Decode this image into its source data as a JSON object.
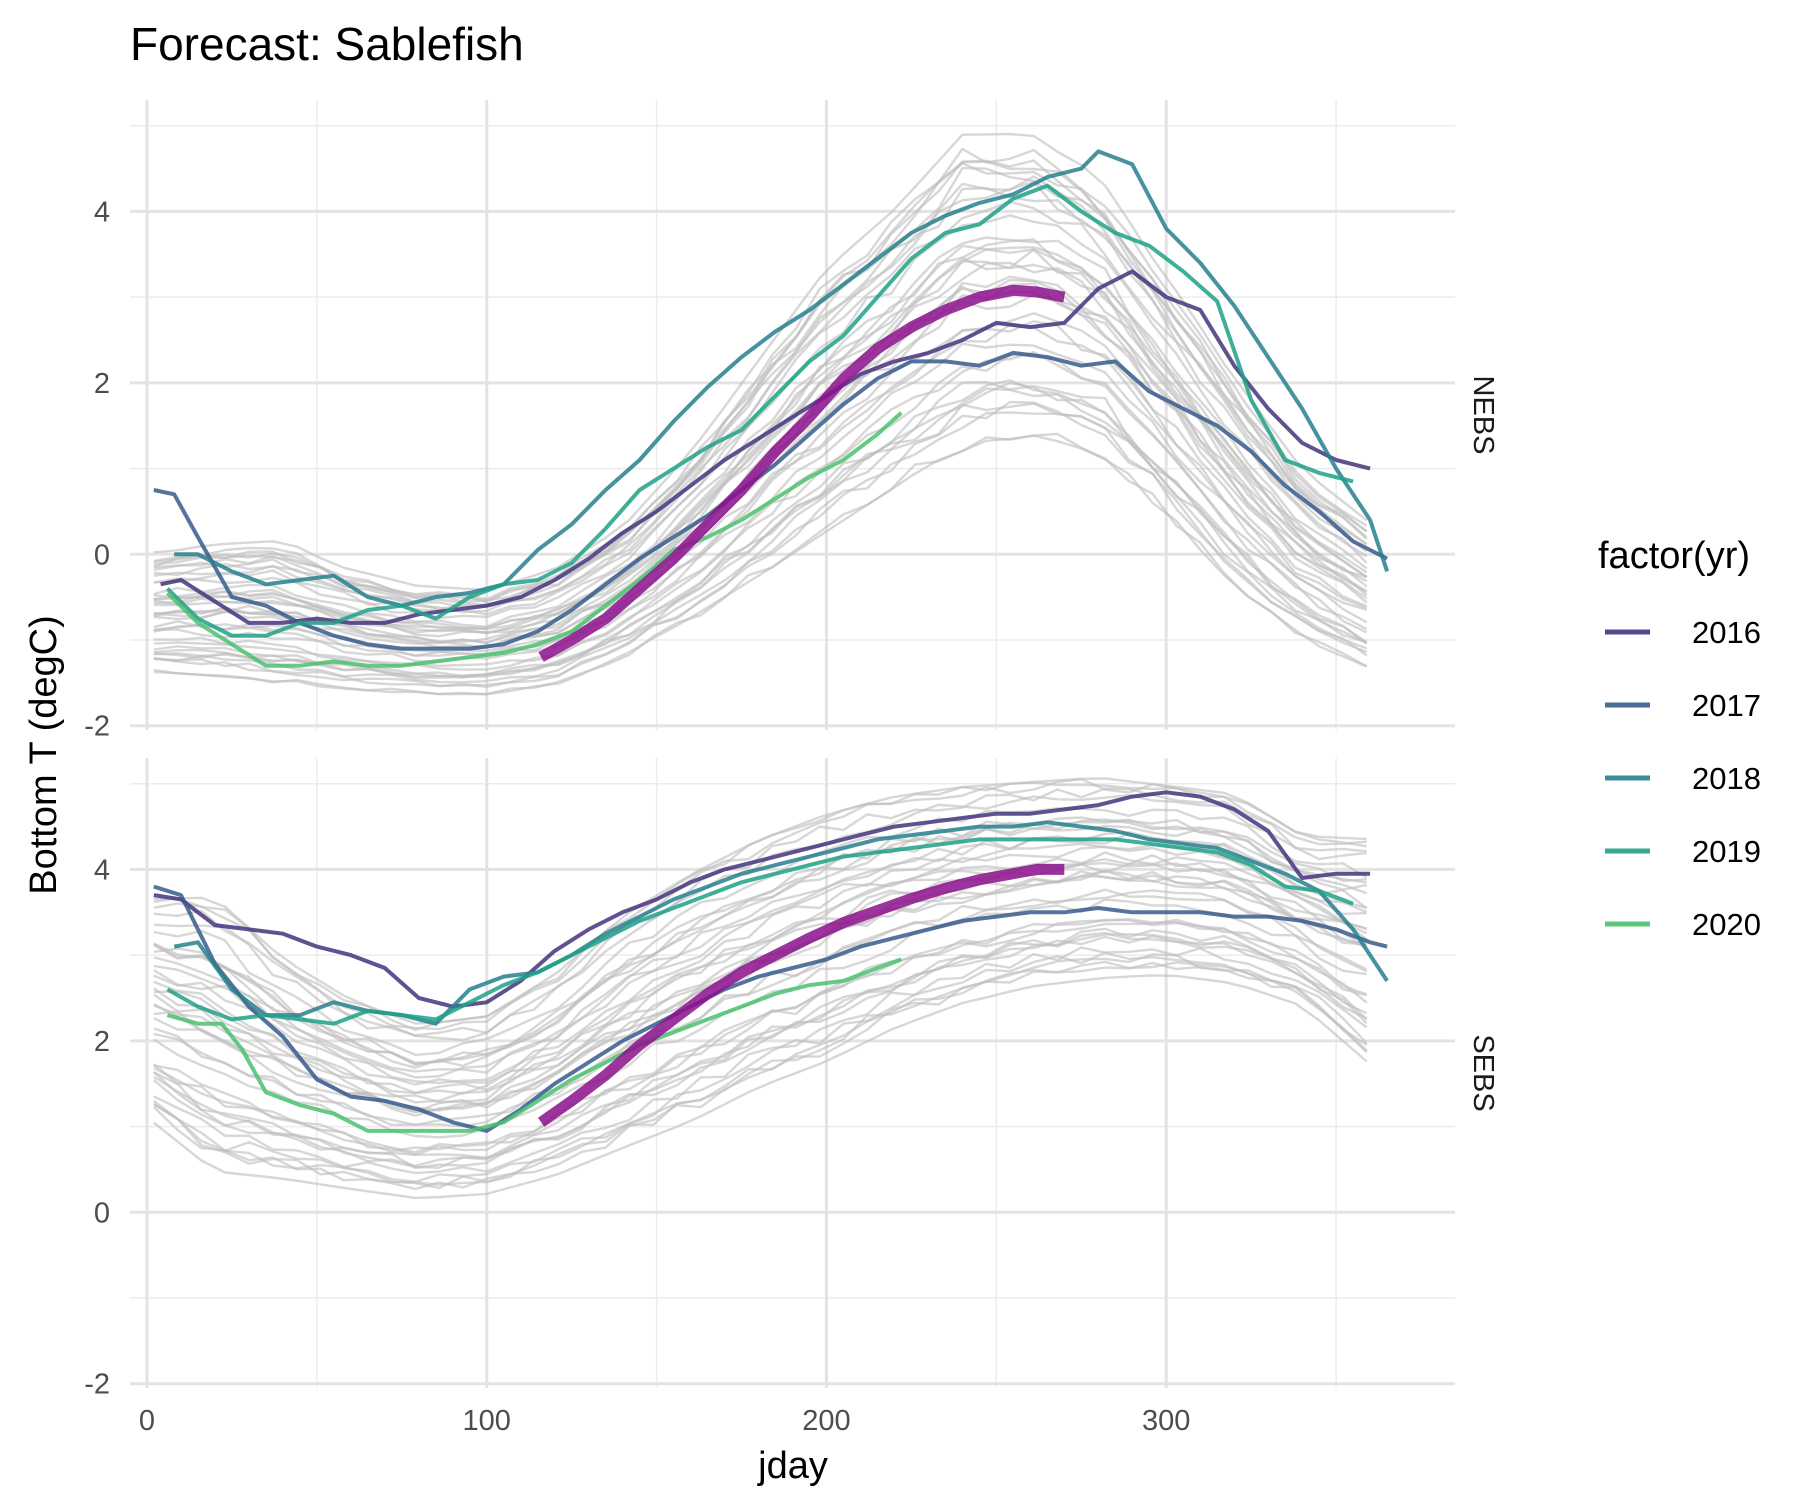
{
  "chart_data": {
    "type": "line",
    "title": "Forecast: Sablefish",
    "xlabel": "jday",
    "ylabel": "Bottom T (degC)",
    "xlim": [
      -5,
      385
    ],
    "ylim": [
      -2.05,
      5.3
    ],
    "x_ticks": [
      0,
      100,
      200,
      300
    ],
    "y_ticks": [
      -2,
      0,
      2,
      4
    ],
    "grid": true,
    "legend": {
      "title": "factor(yr)",
      "position": "right",
      "entries": [
        "2016",
        "2017",
        "2018",
        "2019",
        "2020"
      ],
      "colors": [
        "#46327e",
        "#365c8d",
        "#277f8e",
        "#1fa187",
        "#4ac16d"
      ]
    },
    "colors": {
      "historical": "#bebebe",
      "forecast": "#8c0f8c"
    },
    "panels": [
      {
        "strip": "NEBS",
        "background": {
          "x": [
            2,
            20,
            40,
            60,
            80,
            100,
            120,
            140,
            160,
            180,
            200,
            220,
            240,
            260,
            280,
            300,
            320,
            340,
            365
          ],
          "lo": [
            -1.45,
            -1.5,
            -1.6,
            -1.65,
            -1.7,
            -1.7,
            -1.6,
            -1.3,
            -0.9,
            -0.4,
            0.1,
            0.6,
            1.0,
            1.2,
            1.0,
            0.3,
            -0.5,
            -1.1,
            -1.5
          ],
          "hi": [
            0.1,
            0.2,
            0.25,
            -0.1,
            -0.3,
            -0.35,
            -0.1,
            0.4,
            1.3,
            2.4,
            3.5,
            4.2,
            5.1,
            5.1,
            4.6,
            3.4,
            2.2,
            1.1,
            0.3
          ],
          "count": 38
        },
        "series": [
          {
            "name": "2016",
            "x": [
              4,
              10,
              20,
              30,
              40,
              50,
              60,
              70,
              80,
              90,
              100,
              110,
              120,
              130,
              140,
              150,
              160,
              170,
              180,
              190,
              200,
              210,
              220,
              230,
              240,
              250,
              260,
              270,
              280,
              290,
              300,
              310,
              320,
              330,
              340,
              350,
              360
            ],
            "y": [
              -0.35,
              -0.3,
              -0.55,
              -0.8,
              -0.8,
              -0.75,
              -0.8,
              -0.8,
              -0.7,
              -0.65,
              -0.6,
              -0.5,
              -0.3,
              -0.05,
              0.25,
              0.5,
              0.8,
              1.1,
              1.35,
              1.6,
              1.85,
              2.1,
              2.25,
              2.35,
              2.5,
              2.7,
              2.65,
              2.7,
              3.1,
              3.3,
              3.0,
              2.85,
              2.2,
              1.7,
              1.3,
              1.1,
              1.0
            ]
          },
          {
            "name": "2017",
            "x": [
              2,
              8,
              15,
              25,
              35,
              45,
              55,
              65,
              75,
              85,
              95,
              105,
              115,
              125,
              135,
              145,
              155,
              165,
              175,
              185,
              195,
              205,
              215,
              225,
              235,
              245,
              255,
              265,
              275,
              285,
              295,
              305,
              315,
              325,
              335,
              345,
              355,
              365
            ],
            "y": [
              0.75,
              0.7,
              0.2,
              -0.5,
              -0.6,
              -0.8,
              -0.95,
              -1.05,
              -1.1,
              -1.1,
              -1.1,
              -1.05,
              -0.9,
              -0.65,
              -0.35,
              -0.05,
              0.2,
              0.45,
              0.75,
              1.05,
              1.4,
              1.75,
              2.05,
              2.25,
              2.25,
              2.2,
              2.35,
              2.3,
              2.2,
              2.25,
              1.9,
              1.7,
              1.5,
              1.2,
              0.8,
              0.5,
              0.15,
              -0.05
            ]
          },
          {
            "name": "2018",
            "x": [
              8,
              15,
              25,
              35,
              45,
              55,
              65,
              75,
              85,
              95,
              105,
              115,
              125,
              135,
              145,
              155,
              165,
              175,
              185,
              195,
              205,
              215,
              225,
              235,
              245,
              255,
              265,
              275,
              280,
              290,
              300,
              310,
              320,
              330,
              340,
              350,
              360,
              365
            ],
            "y": [
              0.0,
              0.0,
              -0.2,
              -0.35,
              -0.3,
              -0.25,
              -0.5,
              -0.6,
              -0.5,
              -0.45,
              -0.35,
              0.05,
              0.35,
              0.75,
              1.1,
              1.55,
              1.95,
              2.3,
              2.6,
              2.85,
              3.15,
              3.45,
              3.75,
              3.95,
              4.1,
              4.2,
              4.4,
              4.5,
              4.7,
              4.55,
              3.8,
              3.4,
              2.9,
              2.3,
              1.7,
              1.0,
              0.4,
              -0.2
            ]
          },
          {
            "name": "2019",
            "x": [
              6,
              15,
              25,
              35,
              45,
              55,
              65,
              75,
              85,
              95,
              105,
              115,
              125,
              135,
              145,
              155,
              165,
              175,
              185,
              195,
              205,
              215,
              225,
              235,
              245,
              255,
              265,
              275,
              285,
              295,
              305,
              315,
              325,
              335,
              345,
              355
            ],
            "y": [
              -0.4,
              -0.75,
              -0.95,
              -0.95,
              -0.8,
              -0.8,
              -0.65,
              -0.6,
              -0.75,
              -0.5,
              -0.35,
              -0.3,
              -0.1,
              0.3,
              0.75,
              1.0,
              1.25,
              1.45,
              1.85,
              2.25,
              2.55,
              3.0,
              3.45,
              3.75,
              3.85,
              4.15,
              4.3,
              4.0,
              3.75,
              3.6,
              3.3,
              2.95,
              1.8,
              1.1,
              0.95,
              0.85
            ]
          },
          {
            "name": "2020",
            "x": [
              6,
              15,
              25,
              35,
              45,
              55,
              65,
              75,
              85,
              95,
              105,
              115,
              125,
              135,
              145,
              155,
              165,
              175,
              185,
              195,
              205,
              215,
              222
            ],
            "y": [
              -0.45,
              -0.8,
              -1.05,
              -1.3,
              -1.3,
              -1.25,
              -1.3,
              -1.3,
              -1.25,
              -1.2,
              -1.15,
              -1.05,
              -0.9,
              -0.6,
              -0.3,
              0.05,
              0.2,
              0.4,
              0.65,
              0.9,
              1.1,
              1.4,
              1.65
            ]
          },
          {
            "name": "forecast",
            "x": [
              116,
              125,
              135,
              145,
              155,
              165,
              175,
              185,
              195,
              205,
              215,
              225,
              235,
              245,
              255,
              262,
              270
            ],
            "y": [
              -1.2,
              -1.0,
              -0.75,
              -0.4,
              -0.05,
              0.35,
              0.75,
              1.2,
              1.6,
              2.05,
              2.4,
              2.65,
              2.85,
              3.0,
              3.08,
              3.06,
              3.0
            ]
          }
        ]
      },
      {
        "strip": "SEBS",
        "background": {
          "x": [
            2,
            20,
            40,
            60,
            80,
            100,
            120,
            140,
            160,
            180,
            200,
            220,
            240,
            260,
            280,
            300,
            320,
            340,
            365
          ],
          "lo": [
            0.9,
            0.3,
            0.25,
            0.15,
            0.05,
            0.1,
            0.3,
            0.6,
            0.9,
            1.3,
            1.6,
            2.0,
            2.3,
            2.5,
            2.6,
            2.65,
            2.55,
            2.3,
            1.4
          ],
          "hi": [
            3.8,
            3.85,
            3.1,
            2.6,
            2.3,
            2.4,
            2.9,
            3.6,
            4.1,
            4.5,
            4.8,
            5.0,
            5.1,
            5.15,
            5.2,
            5.1,
            5.0,
            4.5,
            4.5
          ],
          "count": 38
        },
        "series": [
          {
            "name": "2016",
            "x": [
              2,
              10,
              20,
              30,
              40,
              50,
              60,
              70,
              80,
              90,
              100,
              110,
              120,
              130,
              140,
              150,
              160,
              170,
              180,
              190,
              200,
              210,
              220,
              230,
              240,
              250,
              260,
              270,
              280,
              290,
              300,
              310,
              320,
              330,
              340,
              350,
              360
            ],
            "y": [
              3.7,
              3.65,
              3.35,
              3.3,
              3.25,
              3.1,
              3.0,
              2.85,
              2.5,
              2.4,
              2.45,
              2.7,
              3.05,
              3.3,
              3.5,
              3.65,
              3.85,
              4.0,
              4.1,
              4.2,
              4.3,
              4.4,
              4.5,
              4.55,
              4.6,
              4.65,
              4.65,
              4.7,
              4.75,
              4.85,
              4.9,
              4.85,
              4.7,
              4.45,
              3.9,
              3.95,
              3.95
            ]
          },
          {
            "name": "2017",
            "x": [
              2,
              10,
              20,
              30,
              40,
              50,
              60,
              70,
              80,
              90,
              100,
              110,
              120,
              130,
              140,
              150,
              160,
              170,
              180,
              190,
              200,
              210,
              220,
              230,
              240,
              250,
              260,
              270,
              280,
              290,
              300,
              310,
              320,
              330,
              340,
              350,
              360,
              365
            ],
            "y": [
              3.8,
              3.7,
              2.9,
              2.4,
              2.05,
              1.55,
              1.35,
              1.3,
              1.2,
              1.05,
              0.95,
              1.2,
              1.5,
              1.75,
              2.0,
              2.2,
              2.4,
              2.6,
              2.75,
              2.85,
              2.95,
              3.1,
              3.2,
              3.3,
              3.4,
              3.45,
              3.5,
              3.5,
              3.55,
              3.5,
              3.5,
              3.5,
              3.45,
              3.45,
              3.4,
              3.3,
              3.15,
              3.1
            ]
          },
          {
            "name": "2018",
            "x": [
              8,
              15,
              25,
              35,
              45,
              55,
              65,
              75,
              85,
              95,
              105,
              115,
              125,
              135,
              145,
              155,
              165,
              175,
              185,
              195,
              205,
              215,
              225,
              235,
              245,
              255,
              265,
              275,
              285,
              295,
              305,
              315,
              325,
              335,
              345,
              355,
              365
            ],
            "y": [
              3.1,
              3.15,
              2.6,
              2.3,
              2.3,
              2.45,
              2.35,
              2.3,
              2.2,
              2.6,
              2.75,
              2.8,
              3.0,
              3.25,
              3.45,
              3.65,
              3.8,
              3.95,
              4.05,
              4.15,
              4.25,
              4.35,
              4.4,
              4.45,
              4.5,
              4.5,
              4.55,
              4.5,
              4.45,
              4.35,
              4.3,
              4.25,
              4.1,
              3.95,
              3.75,
              3.3,
              2.7
            ]
          },
          {
            "name": "2019",
            "x": [
              6,
              15,
              25,
              35,
              45,
              55,
              65,
              75,
              85,
              95,
              105,
              115,
              125,
              135,
              145,
              155,
              165,
              175,
              185,
              195,
              205,
              215,
              225,
              235,
              245,
              255,
              265,
              275,
              285,
              295,
              305,
              315,
              325,
              335,
              345,
              355
            ],
            "y": [
              2.6,
              2.4,
              2.25,
              2.3,
              2.25,
              2.2,
              2.35,
              2.3,
              2.25,
              2.45,
              2.65,
              2.8,
              3.0,
              3.2,
              3.4,
              3.55,
              3.7,
              3.85,
              3.95,
              4.05,
              4.15,
              4.2,
              4.25,
              4.3,
              4.35,
              4.35,
              4.35,
              4.35,
              4.35,
              4.3,
              4.25,
              4.2,
              4.05,
              3.8,
              3.75,
              3.6
            ]
          },
          {
            "name": "2020",
            "x": [
              6,
              15,
              22,
              28,
              35,
              45,
              55,
              65,
              75,
              85,
              95,
              105,
              115,
              125,
              135,
              145,
              155,
              165,
              175,
              185,
              195,
              205,
              215,
              222
            ],
            "y": [
              2.3,
              2.2,
              2.2,
              1.9,
              1.4,
              1.25,
              1.15,
              0.95,
              0.95,
              0.95,
              0.95,
              1.05,
              1.3,
              1.55,
              1.75,
              1.95,
              2.1,
              2.25,
              2.4,
              2.55,
              2.65,
              2.7,
              2.85,
              2.95
            ]
          },
          {
            "name": "forecast",
            "x": [
              116,
              125,
              135,
              145,
              155,
              165,
              175,
              185,
              195,
              205,
              215,
              225,
              235,
              245,
              255,
              262,
              270
            ],
            "y": [
              1.05,
              1.3,
              1.6,
              1.95,
              2.25,
              2.55,
              2.8,
              3.0,
              3.2,
              3.38,
              3.52,
              3.66,
              3.78,
              3.88,
              3.95,
              4.0,
              4.0
            ]
          }
        ]
      }
    ]
  }
}
